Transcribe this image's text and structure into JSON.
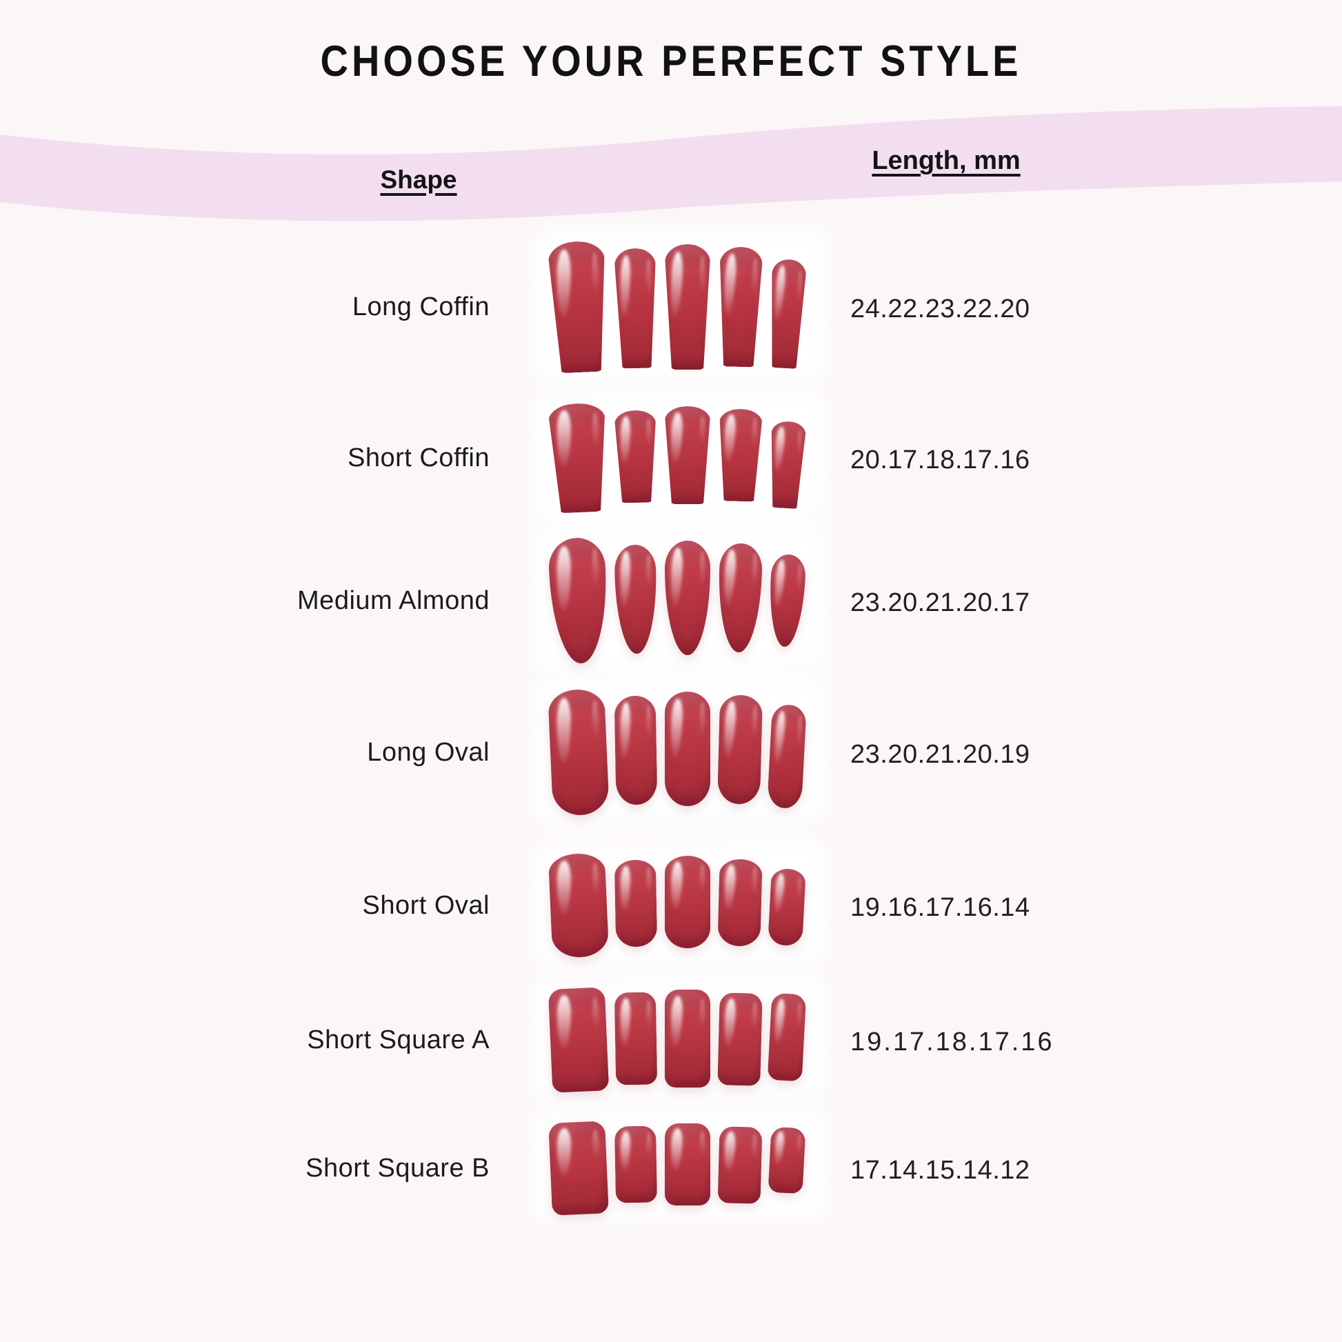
{
  "page": {
    "title": "CHOOSE YOUR PERFECT STYLE"
  },
  "table": {
    "headers": {
      "shape": "Shape",
      "length": "Length, mm"
    },
    "rows": [
      {
        "shape_label": "Long Coffin",
        "lengths_mm": "24.22.23.22.20",
        "nail_shape": "coffin"
      },
      {
        "shape_label": "Short Coffin",
        "lengths_mm": "20.17.18.17.16",
        "nail_shape": "coffin"
      },
      {
        "shape_label": "Medium Almond",
        "lengths_mm": "23.20.21.20.17",
        "nail_shape": "almond"
      },
      {
        "shape_label": "Long Oval",
        "lengths_mm": "23.20.21.20.19",
        "nail_shape": "oval"
      },
      {
        "shape_label": "Short Oval",
        "lengths_mm": "19.16.17.16.14",
        "nail_shape": "oval"
      },
      {
        "shape_label": "Short Square A",
        "lengths_mm": "19.17.18.17.16",
        "nail_shape": "square"
      },
      {
        "shape_label": "Short Square B",
        "lengths_mm": "17.14.15.14.12",
        "nail_shape": "square"
      }
    ]
  },
  "colors": {
    "background": "#fbf6f7",
    "band_pink": "#f3deef",
    "nail_red": "#b43541",
    "text": "#161616"
  }
}
